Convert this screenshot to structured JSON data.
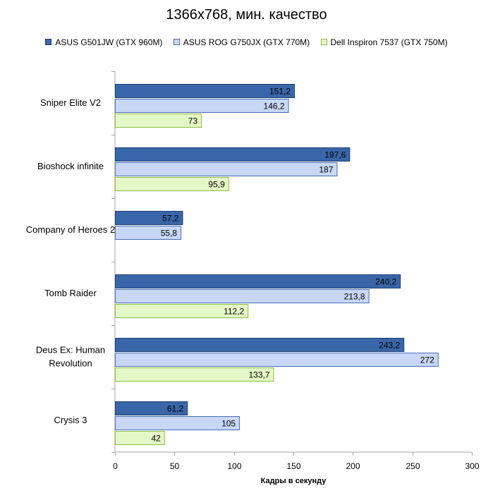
{
  "chart_data": {
    "type": "bar",
    "orientation": "horizontal",
    "title": "1366x768, мин. качество",
    "xlabel": "Кадры  в секунду",
    "ylabel": "",
    "xlim": [
      0,
      300
    ],
    "x_ticks": [
      0,
      50,
      100,
      150,
      200,
      250,
      300
    ],
    "grid": false,
    "legend_position": "top",
    "categories": [
      "Sniper Elite V2",
      "Bioshock infinite",
      "Company of Heroes 2",
      "Tomb Raider",
      "Deus Ex: Human Revolution",
      "Crysis 3"
    ],
    "series": [
      {
        "name": "ASUS G501JW (GTX 960M)",
        "color": "#3966a8",
        "values": [
          151.2,
          197.6,
          57.2,
          240.2,
          243.2,
          61.2
        ]
      },
      {
        "name": "ASUS ROG G750JX (GTX 770M)",
        "color": "#c7d7f5",
        "values": [
          146.2,
          187,
          55.8,
          213.8,
          272,
          105
        ]
      },
      {
        "name": "Dell Inspiron 7537 (GTX 750M)",
        "color": "#e4f7c6",
        "values": [
          73,
          95.9,
          null,
          112.2,
          133.7,
          42
        ]
      }
    ],
    "data_labels": [
      [
        "151,2",
        "197,6",
        "57,2",
        "240,2",
        "243,2",
        "61,2"
      ],
      [
        "146,2",
        "187",
        "55,8",
        "213,8",
        "272",
        "105"
      ],
      [
        "73",
        "95,9",
        "",
        "112,2",
        "133,7",
        "42"
      ]
    ]
  }
}
